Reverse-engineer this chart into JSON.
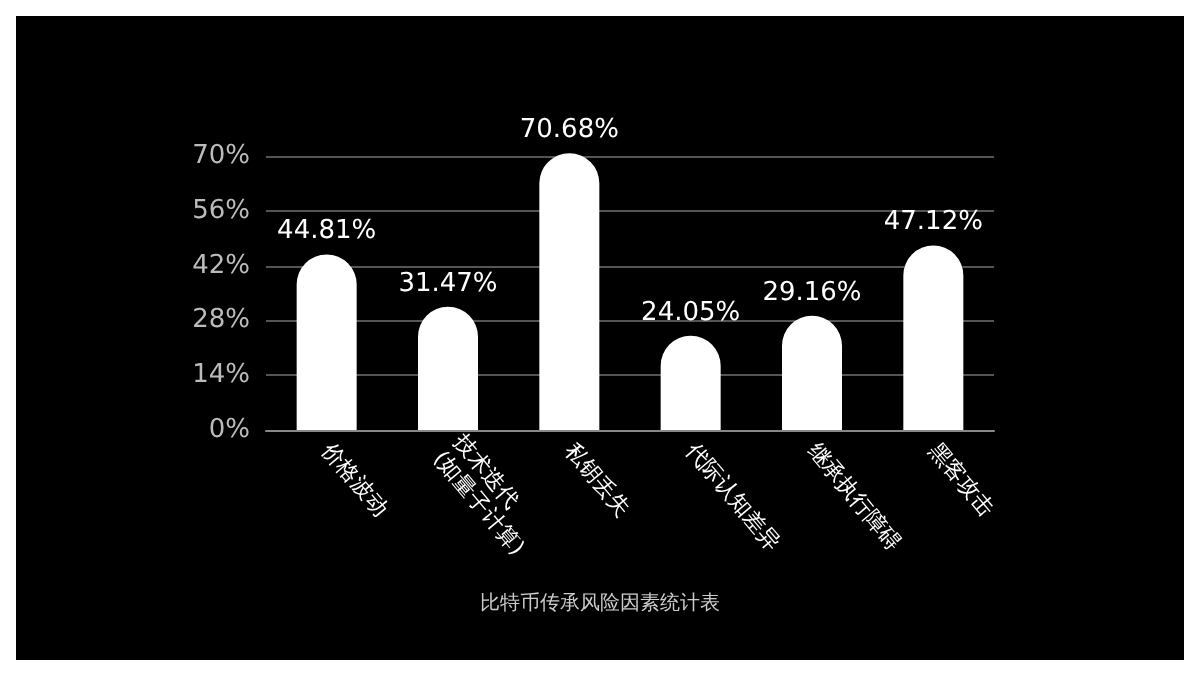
{
  "chart_data": {
    "type": "bar",
    "title": "比特币传承风险因素统计表",
    "categories": [
      "价格波动",
      "技术迭代\n(如量子计算)",
      "私钥丢失",
      "代际认知差异",
      "继承执行障碍",
      "黑客攻击"
    ],
    "values": [
      44.81,
      31.47,
      70.68,
      24.05,
      29.16,
      47.12
    ],
    "value_labels": [
      "44.81%",
      "31.47%",
      "70.68%",
      "24.05%",
      "29.16%",
      "47.12%"
    ],
    "color": "#ffffff",
    "ylim": [
      0,
      72
    ],
    "yticks": [
      {
        "value": 0,
        "label": "0%"
      },
      {
        "value": 14,
        "label": "14%"
      },
      {
        "value": 28,
        "label": "28%"
      },
      {
        "value": 42,
        "label": "42%"
      },
      {
        "value": 56,
        "label": "56%"
      },
      {
        "value": 70,
        "label": "70%"
      }
    ],
    "grid": "y"
  }
}
